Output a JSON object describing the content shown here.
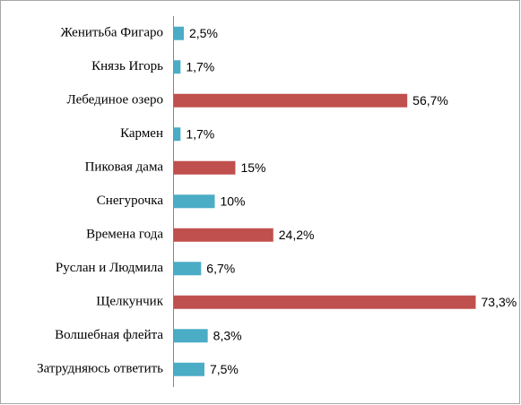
{
  "chart_data": {
    "type": "bar",
    "orientation": "horizontal",
    "categories": [
      "Женитьба Фигаро",
      "Князь Игорь",
      "Лебединое озеро",
      "Кармен",
      "Пиковая дама",
      "Снегурочка",
      "Времена года",
      "Руслан и Людмила",
      "Щелкунчик",
      "Волшебная флейта",
      "Затрудняюсь ответить"
    ],
    "values": [
      2.5,
      1.7,
      56.7,
      1.7,
      15,
      10,
      24.2,
      6.7,
      73.3,
      8.3,
      7.5
    ],
    "value_labels": [
      "2,5%",
      "1,7%",
      "56,7%",
      "1,7%",
      "15%",
      "10%",
      "24,2%",
      "6,7%",
      "73,3%",
      "8,3%",
      "7,5%"
    ],
    "colors": [
      "#4bacc6",
      "#4bacc6",
      "#c0504d",
      "#4bacc6",
      "#c0504d",
      "#4bacc6",
      "#c0504d",
      "#4bacc6",
      "#c0504d",
      "#4bacc6",
      "#4bacc6"
    ]
  }
}
